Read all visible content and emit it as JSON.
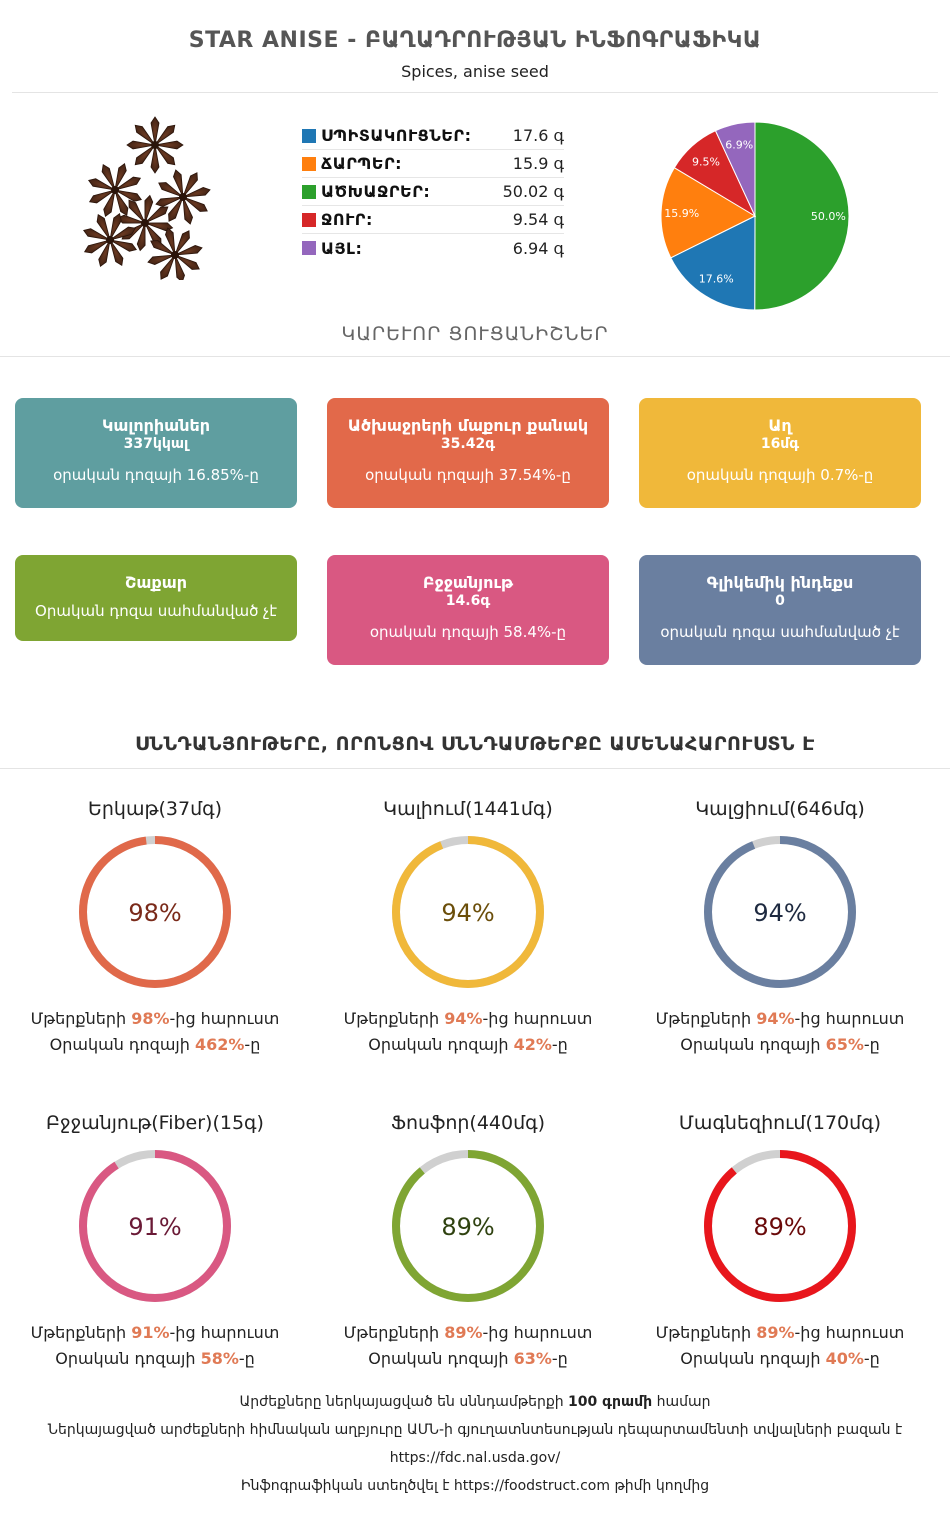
{
  "header": {
    "title": "STAR ANISE - ԲԱՂԱԴՐՈՒԹՅԱՆ ԻՆՖՈԳՐԱՖԻԿԱ",
    "subtitle": "Spices, anise seed"
  },
  "macros": [
    {
      "label": "ՍՊԻՏԱԿՈՒՑՆԵՐ:",
      "value": "17.6 գ",
      "color": "#1f77b4"
    },
    {
      "label": "ՃԱՐՊԵՐ:",
      "value": "15.9 գ",
      "color": "#ff7f0e"
    },
    {
      "label": "ԱԾԽԱՋՐԵՐ:",
      "value": "50.02 գ",
      "color": "#2ca02c"
    },
    {
      "label": "ՋՈՒՐ:",
      "value": "9.54 գ",
      "color": "#d62728"
    },
    {
      "label": "ԱՅԼ:",
      "value": "6.94 գ",
      "color": "#9467bd"
    }
  ],
  "chart_data": {
    "type": "pie",
    "slices": [
      {
        "label": "ԱԾԽԱՋՐԵՐ",
        "value": 50.0,
        "text": "50.0%",
        "color": "#2ca02c"
      },
      {
        "label": "ՍՊԻՏԱԿՈՒՑՆԵՐ",
        "value": 17.6,
        "text": "17.6%",
        "color": "#1f77b4"
      },
      {
        "label": "ՃԱՐՊԵՐ",
        "value": 15.9,
        "text": "15.9%",
        "color": "#ff7f0e"
      },
      {
        "label": "ՋՈՒՐ",
        "value": 9.5,
        "text": "9.5%",
        "color": "#d62728"
      },
      {
        "label": "ԱՅԼ",
        "value": 6.9,
        "text": "6.9%",
        "color": "#9467bd"
      }
    ]
  },
  "key_section_title": "ԿԱՐԵՒՈՐ ՑՈՒՑԱՆԻՇՆԵՐ",
  "cards": [
    {
      "title": "Կալորիաներ",
      "value": "337կկալ",
      "desc": "օրական դոզայի 16.85%-ը",
      "color": "#5f9ea0"
    },
    {
      "title": "Ածխաջրերի մաքուր քանակ",
      "value": "35.42գ",
      "desc": "օրական դոզայի 37.54%-ը",
      "color": "#e2694a"
    },
    {
      "title": "Աղ",
      "value": "16մգ",
      "desc": "օրական դոզայի 0.7%-ը",
      "color": "#f0b83a"
    },
    {
      "title": "Շաքար",
      "value": "",
      "desc": "Օրական դոզա սահմանված չէ",
      "color": "#7fa533"
    },
    {
      "title": "Բջջանյութ",
      "value": "14.6գ",
      "desc": "օրական դոզայի 58.4%-ը",
      "color": "#d95882"
    },
    {
      "title": "Գլիկեմիկ ինդեքս",
      "value": "0",
      "desc": "օրական դոզա սահմանված չէ",
      "color": "#6a7fa0"
    }
  ],
  "nutrients_section_title": "ՍՆՆԴԱՆՅՈՒԹԵՐԸ, ՈՐՈՆՑՈՎ ՍՆՆԴԱՄԹԵՐՔԸ ԱՄԵՆԱՀԱՐՈՒՍՏՆ Է",
  "nutrients": [
    {
      "name": "Երկաթ(37մգ)",
      "percent": 98,
      "percent_text": "98%",
      "rich_pre": "Մթերքների ",
      "rich_val": "98%",
      "rich_post": "-ից հարուստ",
      "daily_pre": "Օրական դոզայի ",
      "daily_val": "462%",
      "daily_post": "-ը",
      "color": "#e0694a",
      "text_color": "#7a2a1a"
    },
    {
      "name": "Կալիում(1441մգ)",
      "percent": 94,
      "percent_text": "94%",
      "rich_pre": "Մթերքների ",
      "rich_val": "94%",
      "rich_post": "-ից հարուստ",
      "daily_pre": "Օրական դոզայի ",
      "daily_val": "42%",
      "daily_post": "-ը",
      "color": "#f0b83a",
      "text_color": "#6b4e0a"
    },
    {
      "name": "Կալցիում(646մգ)",
      "percent": 94,
      "percent_text": "94%",
      "rich_pre": "Մթերքների ",
      "rich_val": "94%",
      "rich_post": "-ից հարուստ",
      "daily_pre": "Օրական դոզայի ",
      "daily_val": "65%",
      "daily_post": "-ը",
      "color": "#6a7fa0",
      "text_color": "#1e2a40"
    },
    {
      "name": "Բջջանյութ(Fiber)(15գ)",
      "percent": 91,
      "percent_text": "91%",
      "rich_pre": "Մթերքների ",
      "rich_val": "91%",
      "rich_post": "-ից հարուստ",
      "daily_pre": "Օրական դոզայի ",
      "daily_val": "58%",
      "daily_post": "-ը",
      "color": "#d95882",
      "text_color": "#6a1a36"
    },
    {
      "name": "Ֆոսֆոր(440մգ)",
      "percent": 89,
      "percent_text": "89%",
      "rich_pre": "Մթերքների ",
      "rich_val": "89%",
      "rich_post": "-ից հարուստ",
      "daily_pre": "Օրական դոզայի ",
      "daily_val": "63%",
      "daily_post": "-ը",
      "color": "#7fa533",
      "text_color": "#2f4210"
    },
    {
      "name": "Մագնեզիում(170մգ)",
      "percent": 89,
      "percent_text": "89%",
      "rich_pre": "Մթերքների ",
      "rich_val": "89%",
      "rich_post": "-ից հարուստ",
      "daily_pre": "Օրական դոզայի ",
      "daily_val": "40%",
      "daily_post": "-ը",
      "color": "#e8161c",
      "text_color": "#6a0a0a"
    }
  ],
  "footer": {
    "line1_pre": "Արժեքները ներկայացված են սննդամթերքի ",
    "line1_bold": "100 գրամի",
    "line1_post": " համար",
    "line2": "Ներկայացված արժեքների հիմնական աղբյուրը ԱՄՆ-ի գյուղատնտեսության դեպարտամենտի տվյալների բազան է",
    "line3": "https://fdc.nal.usda.gov/",
    "line4_pre": "Ինֆոգրաֆիկան ստեղծվել է ",
    "line4_link": "https://foodstruct.com",
    "line4_post": " թիմի կողմից"
  }
}
